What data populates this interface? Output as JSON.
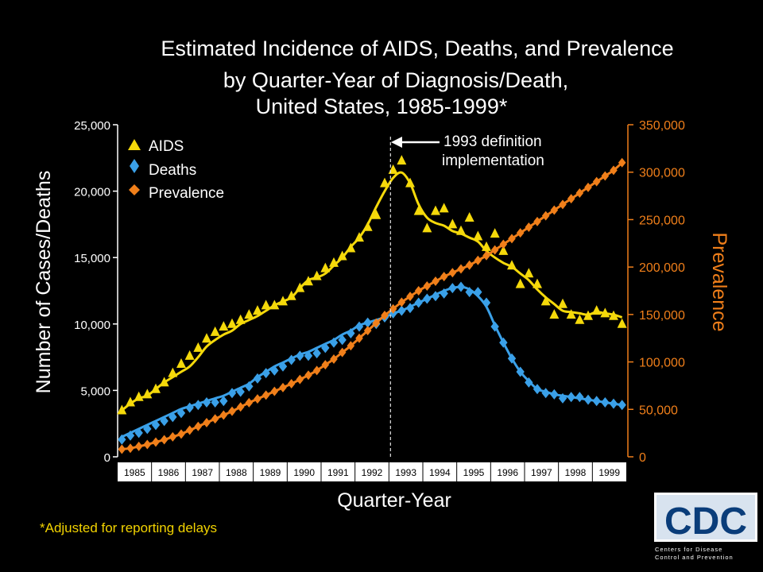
{
  "chart_data": {
    "type": "line",
    "title": "Estimated Incidence of AIDS, Deaths, and Prevalence",
    "subtitle_line1": "by Quarter-Year of Diagnosis/Death,",
    "subtitle_line2": "United States, 1985-1999*",
    "xlabel": "Quarter-Year",
    "ylabel_left": "Number of Cases/Deaths",
    "ylabel_right": "Prevalence",
    "ylim_left": [
      0,
      25000
    ],
    "ylim_right": [
      0,
      350000
    ],
    "left_ticks": [
      "0",
      "5,000",
      "10,000",
      "15,000",
      "20,000",
      "25,000"
    ],
    "right_ticks": [
      "0",
      "50,000",
      "100,000",
      "150,000",
      "200,000",
      "250,000",
      "300,000",
      "350,000"
    ],
    "x_tick_labels": [
      "1985",
      "1986",
      "1987",
      "1988",
      "1989",
      "1990",
      "1991",
      "1992",
      "1993",
      "1994",
      "1995",
      "1996",
      "1997",
      "1998",
      "1999"
    ],
    "legend": [
      {
        "name": "AIDS",
        "marker": "triangle",
        "color": "#f5d90a"
      },
      {
        "name": "Deaths",
        "marker": "diamond",
        "color": "#3aa0e8"
      },
      {
        "name": "Prevalence",
        "marker": "diamond",
        "color": "#f07f1a"
      }
    ],
    "annotation": {
      "line1": "1993 definition",
      "line2": "implementation",
      "at_quarter_index": 32
    },
    "footnote": "*Adjusted for reporting delays",
    "series": [
      {
        "name": "AIDS",
        "axis": "left",
        "color": "#f5d90a",
        "values": [
          3500,
          4000,
          4400,
          4600,
          5100,
          5600,
          6000,
          6400,
          6800,
          7500,
          8300,
          8800,
          9200,
          9500,
          10000,
          10300,
          10600,
          11000,
          11400,
          11700,
          12000,
          12700,
          13300,
          13500,
          13800,
          14400,
          15000,
          15800,
          16500,
          17500,
          18800,
          20000,
          21000,
          21400,
          20600,
          19000,
          18000,
          17600,
          17400,
          17000,
          16800,
          16500,
          16200,
          15500,
          15000,
          14600,
          14300,
          13800,
          13300,
          12600,
          12000,
          11500,
          11000,
          10900,
          10800,
          10700,
          10900,
          10800,
          10700,
          10500
        ],
        "points": [
          3500,
          4100,
          4500,
          4700,
          5100,
          5600,
          6300,
          7000,
          7600,
          8200,
          8900,
          9400,
          9800,
          10000,
          10300,
          10700,
          11000,
          11400,
          11400,
          11700,
          12100,
          12700,
          13200,
          13600,
          14200,
          14600,
          15100,
          15700,
          16500,
          17300,
          18200,
          20600,
          21600,
          22300,
          20600,
          18500,
          17200,
          18500,
          18700,
          17500,
          17000,
          18000,
          16600,
          15800,
          16800,
          15500,
          14400,
          13000,
          13800,
          13000,
          11700,
          10700,
          11500,
          10700,
          10300,
          10600,
          11000,
          10800,
          10600,
          10000
        ]
      },
      {
        "name": "Deaths",
        "axis": "left",
        "color": "#3aa0e8",
        "values": [
          1500,
          1800,
          2100,
          2400,
          2700,
          3000,
          3300,
          3600,
          3800,
          4000,
          4200,
          4400,
          4600,
          4900,
          5200,
          5500,
          6000,
          6400,
          6800,
          7100,
          7400,
          7700,
          7900,
          8200,
          8500,
          8800,
          9200,
          9500,
          9900,
          10100,
          10300,
          10500,
          10800,
          11000,
          11300,
          11600,
          11900,
          12200,
          12500,
          12700,
          12800,
          12600,
          12100,
          11300,
          9900,
          8600,
          7400,
          6400,
          5700,
          5100,
          4900,
          4700,
          4600,
          4500,
          4400,
          4300,
          4200,
          4100,
          4000,
          3900
        ],
        "points": [
          1300,
          1600,
          1800,
          2100,
          2400,
          2700,
          3000,
          3300,
          3700,
          3900,
          4100,
          4100,
          4200,
          4800,
          4900,
          5300,
          5900,
          6300,
          6500,
          6800,
          7300,
          7600,
          7600,
          7800,
          8200,
          8600,
          8800,
          9300,
          9800,
          10100,
          10000,
          10500,
          10800,
          11000,
          11200,
          11600,
          11900,
          12100,
          12300,
          12700,
          12800,
          12400,
          12400,
          11600,
          9800,
          8600,
          7400,
          6400,
          5600,
          5100,
          4800,
          4700,
          4400,
          4500,
          4500,
          4300,
          4200,
          4100,
          4000,
          3900
        ]
      },
      {
        "name": "Prevalence",
        "axis": "right",
        "color": "#f07f1a",
        "values": [
          8000,
          9000,
          11000,
          13000,
          15500,
          18000,
          21000,
          24000,
          28000,
          32000,
          36000,
          40000,
          44000,
          48000,
          52500,
          57000,
          61000,
          65000,
          69000,
          73000,
          77000,
          81500,
          86000,
          91000,
          97000,
          103000,
          110000,
          117000,
          125000,
          133000,
          141000,
          149000,
          156000,
          163000,
          169000,
          175000,
          180000,
          185000,
          190000,
          194000,
          198000,
          202000,
          207000,
          212000,
          218000,
          224000,
          230000,
          236000,
          242000,
          248000,
          254000,
          260000,
          266000,
          272000,
          278000,
          284000,
          290000,
          296000,
          302000,
          310000
        ]
      }
    ]
  },
  "logo": {
    "text": "CDC",
    "line1": "Centers for Disease",
    "line2": "Control and Prevention"
  }
}
